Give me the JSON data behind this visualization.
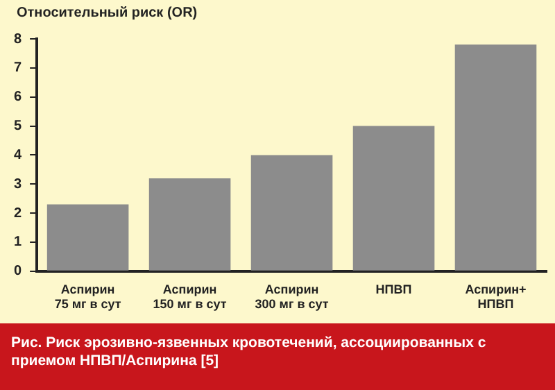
{
  "chart_data": {
    "type": "bar",
    "ylabel": "Относительный риск (OR)",
    "categories": [
      "Аспирин\n75 мг в сут",
      "Аспирин\n150 мг в сут",
      "Аспирин\n300 мг в сут",
      "НПВП",
      "Аспирин+\nНПВП"
    ],
    "values": [
      2.3,
      3.2,
      4.0,
      5.0,
      7.8
    ],
    "color": "#8c8c8c",
    "ylim": [
      0,
      8
    ],
    "yticks": [
      0,
      1,
      2,
      3,
      4,
      5,
      6,
      7,
      8
    ],
    "grid": false,
    "legend": false,
    "annotations": [
      "Рис. Риск эрозивно-язвенных кровотечений, ассоциированных с приемом НПВП/Аспирина [5]"
    ]
  }
}
